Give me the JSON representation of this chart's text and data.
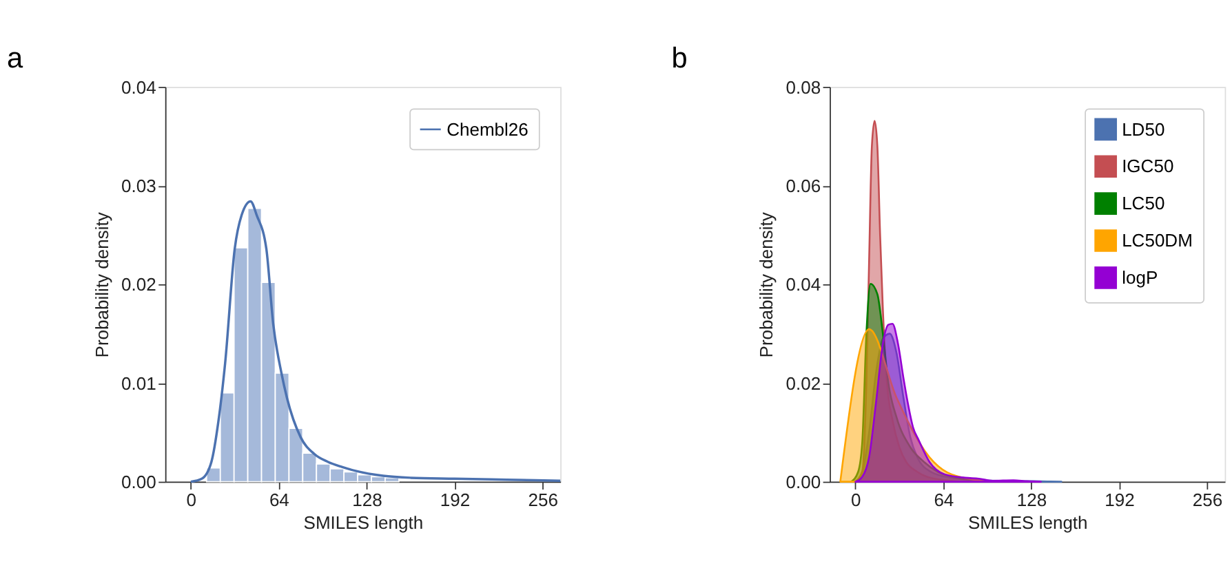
{
  "chart_data": [
    {
      "type": "histogram",
      "title": "a",
      "xlabel": "SMILES length",
      "ylabel": "Probability density",
      "bins": [
        11.5,
        21.5,
        31.5,
        41.5,
        51.5,
        61.5,
        71.5,
        81.5,
        91.5,
        101.5,
        111.5,
        121.5,
        131.5,
        141.5,
        151.5
      ],
      "values": [
        0.0014,
        0.009,
        0.0237,
        0.0277,
        0.0202,
        0.011,
        0.0054,
        0.0029,
        0.0018,
        0.0013,
        0.001,
        0.0007,
        0.0005,
        0.0004
      ],
      "color": "#a5b9da",
      "series": [
        {
          "type": "line",
          "name": "Chembl26",
          "color": "#4c72b0",
          "x": [
            0,
            8,
            15,
            20,
            25,
            32,
            37,
            43.5,
            48,
            55,
            60,
            66,
            70,
            80,
            90,
            100,
            110,
            120,
            140,
            160,
            192,
            230,
            269
          ],
          "values": [
            0,
            0.0003,
            0.002,
            0.006,
            0.012,
            0.0236,
            0.027,
            0.0284,
            0.027,
            0.0236,
            0.016,
            0.011,
            0.0085,
            0.0045,
            0.0028,
            0.002,
            0.0015,
            0.0011,
            0.0006,
            0.0004,
            0.0003,
            0.0002,
            0.0001
          ]
        }
      ],
      "xlim": [
        -18.6,
        269
      ],
      "xticks": [
        0,
        64,
        128,
        192,
        256
      ],
      "ylim": [
        0,
        0.04
      ],
      "yticks": [
        {
          "value": 0,
          "label": "0.00"
        },
        {
          "value": 0.01,
          "label": "0.01"
        },
        {
          "value": 0.02,
          "label": "0.02"
        },
        {
          "value": 0.03,
          "label": "0.03"
        },
        {
          "value": 0.04,
          "label": "0.04"
        }
      ],
      "grid": false,
      "legend": "top right"
    },
    {
      "type": "area",
      "title": "b",
      "xlabel": "SMILES length",
      "ylabel": "Probability density",
      "series": [
        {
          "name": "LD50",
          "color": "#4c72b0",
          "x": [
            0,
            5,
            10,
            15,
            20,
            25,
            30,
            35,
            40,
            45,
            55,
            70,
            90,
            130,
            150
          ],
          "values": [
            0,
            0.002,
            0.01,
            0.022,
            0.029,
            0.03,
            0.026,
            0.017,
            0.009,
            0.005,
            0.002,
            0.0008,
            0.0003,
            0.0001,
            0
          ]
        },
        {
          "name": "IGC50",
          "color": "#c44e52",
          "x": [
            0,
            5,
            8,
            10,
            12,
            14,
            16,
            18,
            20,
            23,
            27,
            32,
            37,
            45,
            60,
            80
          ],
          "values": [
            0,
            0.002,
            0.02,
            0.045,
            0.068,
            0.0731,
            0.068,
            0.05,
            0.035,
            0.02,
            0.0125,
            0.007,
            0.004,
            0.002,
            0.0005,
            0
          ]
        },
        {
          "name": "LC50",
          "color": "#008000",
          "x": [
            -3,
            2,
            5,
            8,
            11,
            16,
            20,
            24,
            30,
            40,
            50,
            60,
            80,
            100
          ],
          "values": [
            0,
            0.002,
            0.008,
            0.03,
            0.0401,
            0.038,
            0.03,
            0.02,
            0.013,
            0.007,
            0.004,
            0.002,
            0.0005,
            0
          ]
        },
        {
          "name": "LC50DM",
          "color": "#ffa500",
          "x": [
            -11,
            10,
            30,
            57,
            70,
            100
          ],
          "values": [
            0,
            0.0309,
            0.017,
            0.004,
            0.0015,
            0
          ]
        },
        {
          "name": "logP",
          "color": "#9400d3",
          "x": [
            0,
            5,
            10,
            15,
            20,
            24,
            27,
            31,
            35,
            38,
            42,
            46,
            54,
            65,
            80,
            90,
            100,
            115,
            125,
            135
          ],
          "values": [
            0,
            0.001,
            0.005,
            0.016,
            0.028,
            0.0318,
            0.032,
            0.028,
            0.021,
            0.0162,
            0.011,
            0.0085,
            0.004,
            0.0015,
            0.0008,
            0.0006,
            0.0002,
            0.0003,
            0.0001,
            0
          ]
        }
      ],
      "xlim": [
        -18.7,
        269
      ],
      "xticks": [
        0,
        64,
        128,
        192,
        256
      ],
      "ylim": [
        0,
        0.08
      ],
      "yticks": [
        {
          "value": 0,
          "label": "0.00"
        },
        {
          "value": 0.02,
          "label": "0.02"
        },
        {
          "value": 0.04,
          "label": "0.04"
        },
        {
          "value": 0.06,
          "label": "0.06"
        },
        {
          "value": 0.08,
          "label": "0.08"
        }
      ],
      "grid": false,
      "legend": "top right"
    }
  ]
}
